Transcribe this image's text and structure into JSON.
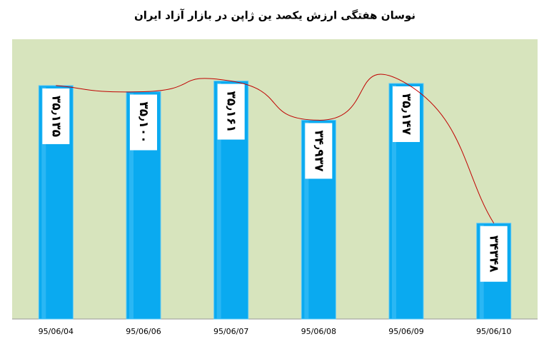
{
  "chart_data": {
    "type": "bar",
    "title": "نوسان هفتگی ارزش  یکصد ین ژاپن در بازار آزاد ایران",
    "categories": [
      "95/06/04",
      "95/06/06",
      "95/06/07",
      "95/06/08",
      "95/06/09",
      "95/06/10"
    ],
    "values": [
      35135,
      35100,
      35161,
      34937,
      35147,
      34348
    ],
    "value_labels": [
      "۳۵٫۱۳۵",
      "۳۵٫۱۰۰",
      "۳۵٫۱۶۱",
      "۳۴٫۹۳۷",
      "۳۵٫۱۴۷",
      "۳۴۳۴۸"
    ],
    "color": "#0aaaf0",
    "line_color": "#c00000",
    "ylim": [
      33800,
      35400
    ]
  }
}
